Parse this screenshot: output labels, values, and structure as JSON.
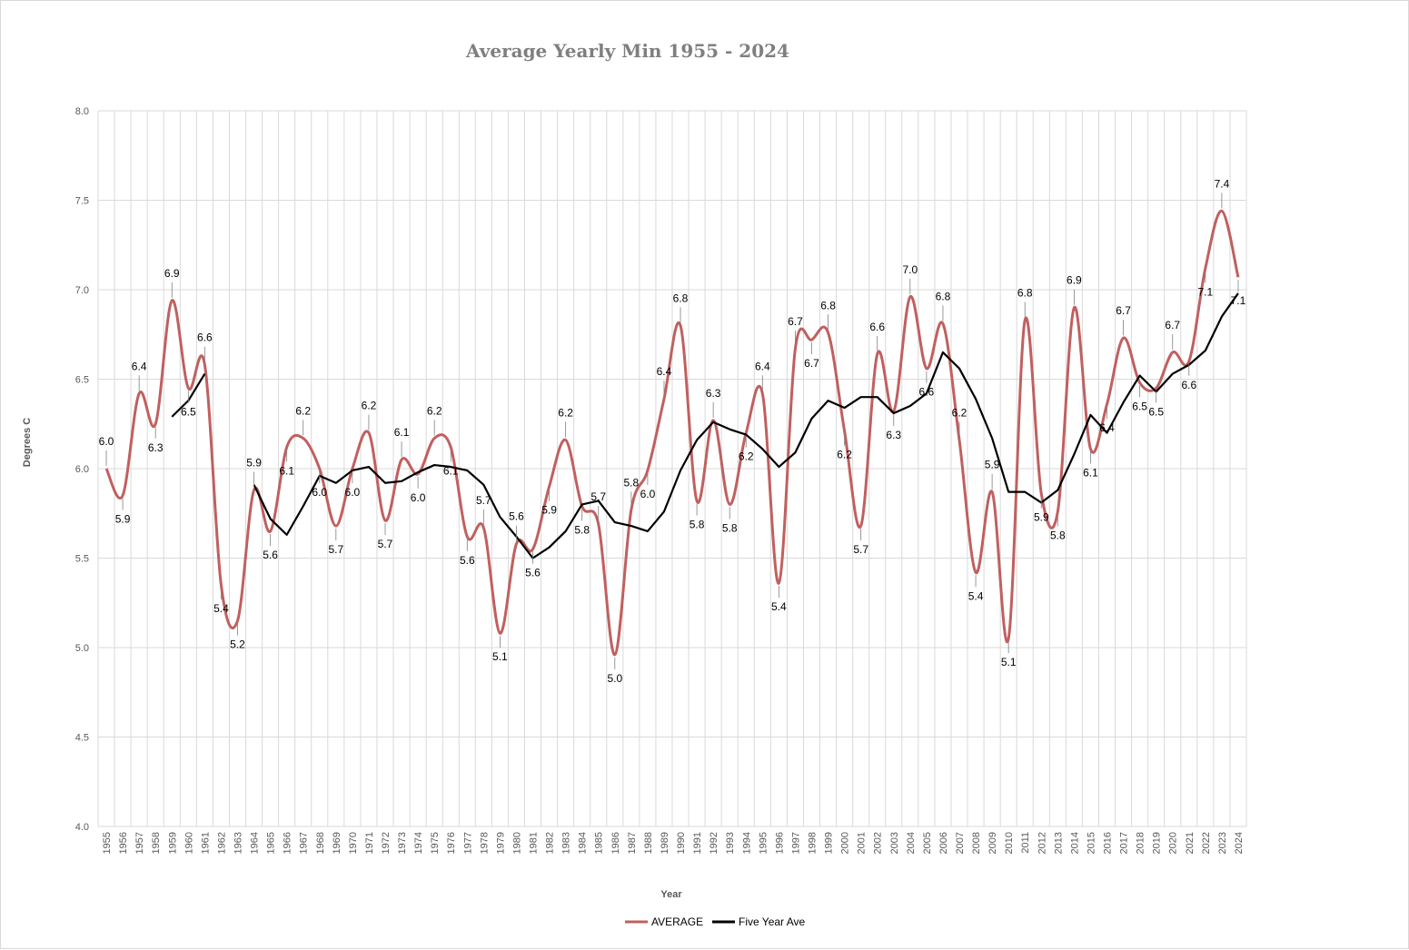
{
  "chart_data": {
    "type": "line",
    "title": "Average Yearly Min 1955 - 2024",
    "xlabel": "Year",
    "ylabel": "Degrees C",
    "ylim": [
      4.0,
      8.0
    ],
    "yticks": [
      "4.0",
      "4.5",
      "5.0",
      "5.5",
      "6.0",
      "6.5",
      "7.0",
      "7.5",
      "8.0"
    ],
    "grid": true,
    "legend_position": "bottom",
    "x": [
      1955,
      1956,
      1957,
      1958,
      1959,
      1960,
      1961,
      1962,
      1963,
      1964,
      1965,
      1966,
      1967,
      1968,
      1969,
      1970,
      1971,
      1972,
      1973,
      1974,
      1975,
      1976,
      1977,
      1978,
      1979,
      1980,
      1981,
      1982,
      1983,
      1984,
      1985,
      1986,
      1987,
      1988,
      1989,
      1990,
      1991,
      1992,
      1993,
      1994,
      1995,
      1996,
      1997,
      1998,
      1999,
      2000,
      2001,
      2002,
      2003,
      2004,
      2005,
      2006,
      2007,
      2008,
      2009,
      2010,
      2011,
      2012,
      2013,
      2014,
      2015,
      2016,
      2017,
      2018,
      2019,
      2020,
      2021,
      2022,
      2023,
      2024
    ],
    "series": [
      {
        "name": "AVERAGE",
        "color": "#c0605f",
        "smooth": true,
        "values": [
          6.0,
          5.85,
          6.42,
          6.25,
          6.94,
          6.45,
          6.58,
          5.35,
          5.15,
          5.88,
          5.65,
          6.12,
          6.17,
          6.0,
          5.68,
          6.0,
          6.2,
          5.71,
          6.05,
          5.97,
          6.17,
          6.12,
          5.62,
          5.67,
          5.08,
          5.58,
          5.55,
          5.9,
          6.16,
          5.79,
          5.69,
          4.96,
          5.77,
          5.99,
          6.39,
          6.8,
          5.82,
          6.27,
          5.8,
          6.2,
          6.42,
          5.36,
          6.67,
          6.72,
          6.76,
          6.21,
          5.68,
          6.64,
          6.32,
          6.96,
          6.56,
          6.81,
          6.16,
          5.42,
          5.87,
          5.05,
          6.83,
          5.86,
          5.76,
          6.9,
          6.11,
          6.36,
          6.73,
          6.48,
          6.45,
          6.65,
          6.6,
          7.12,
          7.44,
          7.07
        ],
        "labels": [
          "6.0",
          "5.9",
          "6.4",
          "6.3",
          "6.9",
          "6.5",
          "6.6",
          "5.4",
          "5.2",
          "5.9",
          "5.6",
          "6.1",
          "6.2",
          "6.0",
          "5.7",
          "6.0",
          "6.2",
          "5.7",
          "6.1",
          "6.0",
          "6.2",
          "6.1",
          "5.6",
          "5.7",
          "5.1",
          "5.6",
          "5.6",
          "5.9",
          "6.2",
          "5.8",
          "5.7",
          "5.0",
          "5.8",
          "6.0",
          "6.4",
          "6.8",
          "5.8",
          "6.3",
          "5.8",
          "6.2",
          "6.4",
          "5.4",
          "6.7",
          "6.7",
          "6.8",
          "6.2",
          "5.7",
          "6.6",
          "6.3",
          "7.0",
          "6.6",
          "6.8",
          "6.2",
          "5.4",
          "5.9",
          "5.1",
          "6.8",
          "5.9",
          "5.8",
          "6.9",
          "6.1",
          "6.4",
          "6.7",
          "6.5",
          "6.5",
          "6.7",
          "6.6",
          "7.1",
          "7.4",
          "7.1"
        ]
      },
      {
        "name": "Five Year Ave",
        "color": "#000000",
        "smooth": false,
        "values": [
          null,
          null,
          null,
          null,
          6.29,
          6.38,
          6.53,
          null,
          null,
          5.91,
          5.72,
          5.63,
          5.79,
          5.96,
          5.92,
          5.99,
          6.01,
          5.92,
          5.93,
          5.98,
          6.02,
          6.01,
          5.99,
          5.91,
          5.73,
          5.62,
          5.5,
          5.56,
          5.65,
          5.8,
          5.82,
          5.7,
          5.68,
          5.65,
          5.76,
          5.99,
          6.16,
          6.26,
          6.22,
          6.19,
          6.11,
          6.01,
          6.09,
          6.28,
          6.38,
          6.34,
          6.4,
          6.4,
          6.31,
          6.35,
          6.42,
          6.65,
          6.56,
          6.39,
          6.17,
          5.87,
          5.87,
          5.81,
          5.88,
          6.08,
          6.3,
          6.2,
          6.37,
          6.52,
          6.43,
          6.53,
          6.58,
          6.66,
          6.85,
          6.98
        ]
      }
    ]
  }
}
